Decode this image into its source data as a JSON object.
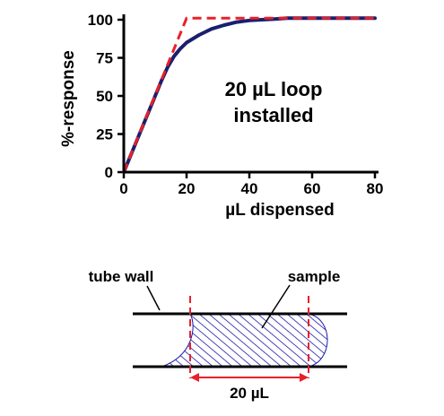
{
  "chart_data": {
    "type": "line",
    "xlabel": "µL dispensed",
    "ylabel": "%-response",
    "xlim": [
      0,
      80
    ],
    "ylim": [
      0,
      100
    ],
    "xticks": [
      0,
      20,
      40,
      60,
      80
    ],
    "yticks": [
      0,
      25,
      50,
      75,
      100
    ],
    "grid": false,
    "annotation": [
      "20 µL loop",
      "installed"
    ],
    "series": [
      {
        "style": "solid",
        "color": "#1b1f6e",
        "x": [
          0,
          2,
          4,
          6,
          8,
          10,
          12,
          14,
          16,
          18,
          20,
          24,
          28,
          32,
          36,
          40,
          44,
          48,
          52,
          60,
          70,
          80
        ],
        "y": [
          0,
          10,
          20,
          30,
          40,
          50,
          60,
          69,
          76,
          81,
          85,
          90,
          94,
          96.5,
          98.5,
          99.5,
          100,
          100.5,
          101,
          101,
          101,
          101
        ]
      },
      {
        "style": "dashed",
        "color": "#e8202a",
        "x": [
          0,
          20,
          80
        ],
        "y": [
          0,
          101,
          101
        ]
      }
    ]
  },
  "diagram": {
    "tube_label": "tube wall",
    "sample_label": "sample",
    "volume_label": "20 µL"
  },
  "colors": {
    "curve": "#1b1f6e",
    "dashed": "#e8202a",
    "hatch": "#1a1aa8"
  }
}
